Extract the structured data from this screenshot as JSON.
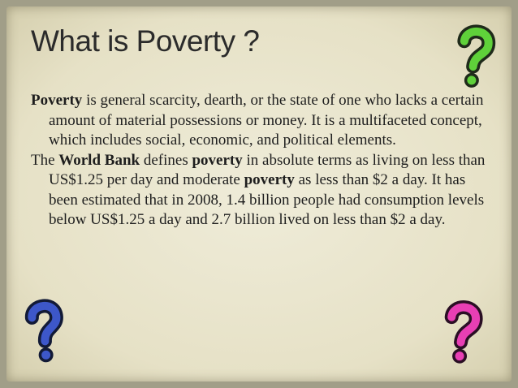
{
  "header": {
    "title": "What is Poverty ?"
  },
  "paragraphs": [
    {
      "segments": [
        {
          "text": "Poverty",
          "bold": true
        },
        {
          "text": " is general scarcity, dearth, or the state of one who lacks a certain amount of material possessions or money. It is a multifaceted concept, which includes social, economic, and political elements.",
          "bold": false
        }
      ]
    },
    {
      "segments": [
        {
          "text": "The ",
          "bold": false
        },
        {
          "text": "World Bank",
          "bold": true
        },
        {
          "text": " defines ",
          "bold": false
        },
        {
          "text": "poverty",
          "bold": true
        },
        {
          "text": " in absolute terms as living on less than US$1.25 per day and moderate ",
          "bold": false
        },
        {
          "text": "poverty",
          "bold": true
        },
        {
          "text": " as less than $2 a day. It has been estimated that in 2008, 1.4 billion people had consumption levels below US$1.25 a day and 2.7 billion lived on less than $2 a day.",
          "bold": false
        }
      ]
    }
  ]
}
